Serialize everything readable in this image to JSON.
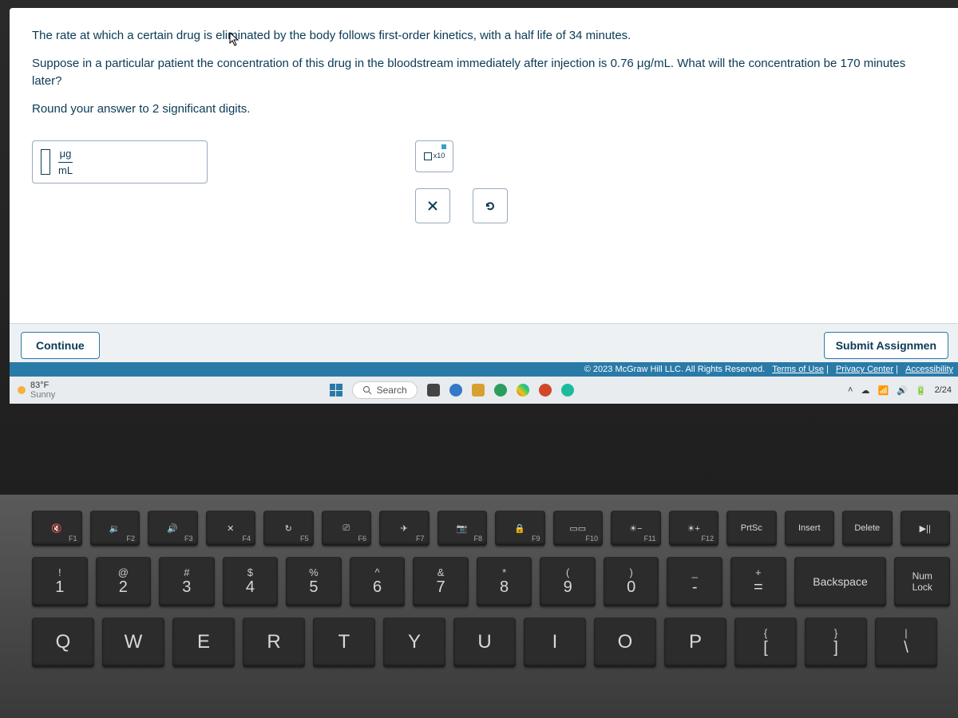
{
  "question": {
    "line1": "The rate at which a certain drug is eliminated by the body follows first-order kinetics, with a half life of 34 minutes.",
    "line2": "Suppose in a particular patient the concentration of this drug in the bloodstream immediately after injection is 0.76 μg/mL. What will the concentration be 170 minutes later?",
    "line3": "Round your answer to 2 significant digits.",
    "unit_num": "μg",
    "unit_den": "mL",
    "sci_label": "x10"
  },
  "buttons": {
    "continue": "Continue",
    "submit": "Submit Assignmen"
  },
  "legal": {
    "copyright": "© 2023 McGraw Hill LLC. All Rights Reserved.",
    "terms": "Terms of Use",
    "privacy": "Privacy Center",
    "access": "Accessibility"
  },
  "taskbar": {
    "temp": "83°F",
    "cond": "Sunny",
    "search": "Search",
    "date": "2/24"
  },
  "fnkeys": [
    {
      "icon": "🔇",
      "lab": "F1"
    },
    {
      "icon": "🔉",
      "lab": "F2"
    },
    {
      "icon": "🔊",
      "lab": "F3"
    },
    {
      "icon": "✕",
      "lab": "F4"
    },
    {
      "icon": "↻",
      "lab": "F5"
    },
    {
      "icon": "⎚",
      "lab": "F6"
    },
    {
      "icon": "✈",
      "lab": "F7"
    },
    {
      "icon": "📷",
      "lab": "F8"
    },
    {
      "icon": "🔒",
      "lab": "F9"
    },
    {
      "icon": "▭▭",
      "lab": "F10"
    },
    {
      "icon": "☀−",
      "lab": "F11"
    },
    {
      "icon": "☀+",
      "lab": "F12"
    },
    {
      "icon": "PrtSc",
      "lab": ""
    },
    {
      "icon": "Insert",
      "lab": ""
    },
    {
      "icon": "Delete",
      "lab": ""
    },
    {
      "icon": "▶||",
      "lab": ""
    }
  ],
  "numrow": [
    {
      "s": "!",
      "m": "1"
    },
    {
      "s": "@",
      "m": "2"
    },
    {
      "s": "#",
      "m": "3"
    },
    {
      "s": "$",
      "m": "4"
    },
    {
      "s": "%",
      "m": "5"
    },
    {
      "s": "^",
      "m": "6"
    },
    {
      "s": "&",
      "m": "7"
    },
    {
      "s": "*",
      "m": "8"
    },
    {
      "s": "(",
      "m": "9"
    },
    {
      "s": ")",
      "m": "0"
    },
    {
      "s": "_",
      "m": "-"
    },
    {
      "s": "+",
      "m": "="
    }
  ],
  "backspace": "Backspace",
  "numlock": {
    "top": "Num",
    "bot": "Lock"
  },
  "letters": [
    "Q",
    "W",
    "E",
    "R",
    "T",
    "Y",
    "U",
    "I",
    "O",
    "P"
  ],
  "brackets": [
    {
      "s": "{",
      "m": "["
    },
    {
      "s": "}",
      "m": "]"
    },
    {
      "s": "|",
      "m": "\\"
    }
  ]
}
